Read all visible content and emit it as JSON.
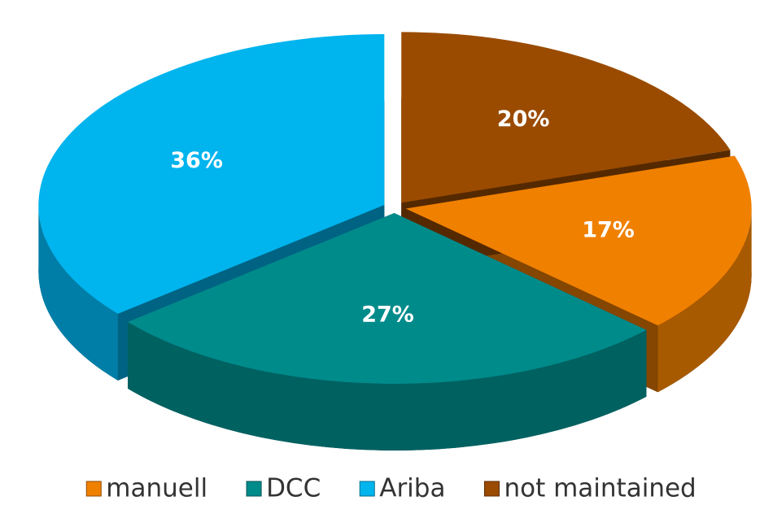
{
  "chart_data": {
    "type": "pie",
    "categories": [
      "manuell",
      "DCC",
      "Ariba",
      "not maintained"
    ],
    "values": [
      17,
      27,
      36,
      20
    ],
    "value_labels": [
      "17%",
      "27%",
      "36%",
      "20%"
    ],
    "colors": [
      "#f08000",
      "#008b8b",
      "#00b4ee",
      "#9a4b00"
    ],
    "legend": "bottom"
  }
}
